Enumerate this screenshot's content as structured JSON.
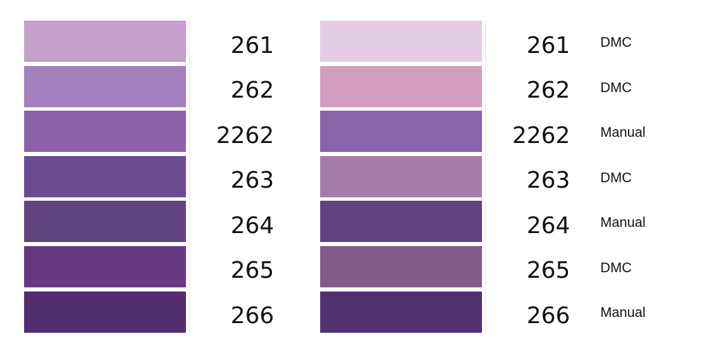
{
  "left": {
    "rows": [
      {
        "code": "261",
        "color": "#c49fc9"
      },
      {
        "code": "262",
        "color": "#a37fbc"
      },
      {
        "code": "2262",
        "color": "#8c61aa"
      },
      {
        "code": "263",
        "color": "#6d4b93"
      },
      {
        "code": "264",
        "color": "#61437f"
      },
      {
        "code": "265",
        "color": "#663882"
      },
      {
        "code": "266",
        "color": "#512e6e"
      }
    ]
  },
  "right": {
    "rows": [
      {
        "code": "261",
        "brand": "DMC",
        "color": "#e4cce4"
      },
      {
        "code": "262",
        "brand": "DMC",
        "color": "#d29dc0"
      },
      {
        "code": "2262",
        "brand": "Manual",
        "color": "#8b63ab"
      },
      {
        "code": "263",
        "brand": "DMC",
        "color": "#a57ca8"
      },
      {
        "code": "264",
        "brand": "Manual",
        "color": "#624284"
      },
      {
        "code": "265",
        "brand": "DMC",
        "color": "#835c8a"
      },
      {
        "code": "266",
        "brand": "Manual",
        "color": "#523272"
      }
    ]
  }
}
